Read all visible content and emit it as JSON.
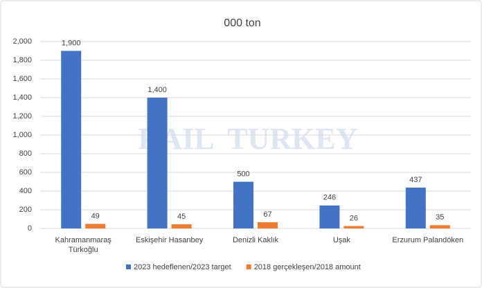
{
  "chart_data": {
    "type": "bar",
    "title": "000 ton",
    "watermark": "RAIL  TURKEY",
    "categories": [
      "Kahramanmaraş Türkoğlu",
      "Eskişehir Hasanbey",
      "Denizli Kaklık",
      "Uşak",
      "Erzurum Palandöken"
    ],
    "series": [
      {
        "name": "2023 hedeflenen/2023 target",
        "color": "#4472c4",
        "values": [
          1900,
          1400,
          500,
          246,
          437
        ],
        "value_labels": [
          "1,900",
          "1,400",
          "500",
          "246",
          "437"
        ]
      },
      {
        "name": "2018 gerçekleşen/2018 amount",
        "color": "#ed7d31",
        "values": [
          49,
          45,
          67,
          26,
          35
        ]
      }
    ],
    "ylim": [
      0,
      2000
    ],
    "yticks": [
      0,
      200,
      400,
      600,
      800,
      {
        "value": 1000,
        "label": "1,000"
      },
      {
        "value": 1200,
        "label": "1,200"
      },
      {
        "value": 1400,
        "label": "1,400"
      },
      {
        "value": 1600,
        "label": "1,600"
      },
      {
        "value": 1800,
        "label": "1,800"
      },
      {
        "value": 2000,
        "label": "2,000"
      }
    ],
    "grid": true,
    "legend": "bottom"
  }
}
